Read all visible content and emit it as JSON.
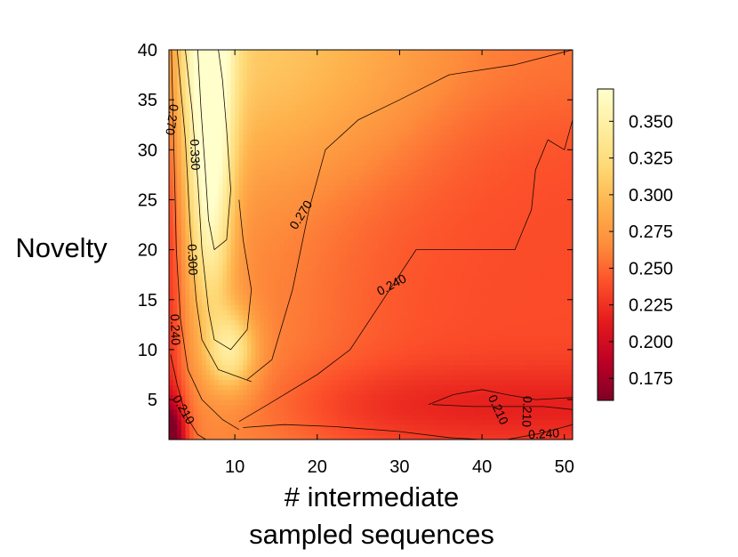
{
  "chart_data": {
    "type": "heatmap",
    "title": "",
    "xlabel_line1": "# intermediate",
    "xlabel_line2": "sampled sequences",
    "ylabel": "Novelty",
    "xlim": [
      2,
      51
    ],
    "ylim": [
      1,
      40
    ],
    "x_ticks": [
      10,
      20,
      30,
      40,
      50
    ],
    "y_ticks": [
      5,
      10,
      15,
      20,
      25,
      30,
      35,
      40
    ],
    "colorbar": {
      "range": [
        0.16,
        0.372
      ],
      "ticks": [
        "0.175",
        "0.200",
        "0.225",
        "0.250",
        "0.275",
        "0.300",
        "0.325",
        "0.350"
      ],
      "colormap": [
        "#800026",
        "#bd0026",
        "#e31a1c",
        "#fc4e2a",
        "#fd8d3c",
        "#feb24c",
        "#fed976",
        "#ffeda0",
        "#ffffcc"
      ]
    },
    "contour_levels": [
      {
        "level": "0.210",
        "contour": [
          [
            2.2,
            9.5
          ],
          [
            3.0,
            6.5
          ],
          [
            4.0,
            3.5
          ],
          [
            5.5,
            1.5
          ],
          [
            6.5,
            1.0
          ]
        ]
      },
      {
        "level": "0.240",
        "contour": [
          [
            2.3,
            40
          ],
          [
            2.6,
            30
          ],
          [
            2.9,
            20
          ],
          [
            3.4,
            13
          ],
          [
            4.3,
            8
          ],
          [
            6.0,
            5
          ],
          [
            8.5,
            3
          ],
          [
            10.5,
            2
          ]
        ]
      },
      {
        "level": "0.270",
        "contour": [
          [
            3.0,
            40
          ],
          [
            4.0,
            31
          ],
          [
            4.6,
            22
          ],
          [
            5.3,
            15
          ],
          [
            6.0,
            11
          ],
          [
            8.0,
            8
          ],
          [
            12.0,
            6.8
          ]
        ]
      },
      {
        "level": "0.300",
        "contour": [
          [
            4.0,
            40
          ],
          [
            4.8,
            34
          ],
          [
            5.5,
            27
          ],
          [
            6.0,
            20
          ],
          [
            6.8,
            14
          ],
          [
            7.5,
            11
          ],
          [
            9.5,
            10
          ],
          [
            11.5,
            12
          ],
          [
            12.0,
            16
          ],
          [
            11.0,
            21
          ],
          [
            10.5,
            25
          ]
        ]
      },
      {
        "level": "0.330",
        "contour": [
          [
            5.5,
            40
          ],
          [
            5.9,
            34
          ],
          [
            6.4,
            28
          ],
          [
            6.8,
            23
          ],
          [
            7.5,
            20
          ],
          [
            9.0,
            21
          ],
          [
            9.5,
            26
          ],
          [
            9.0,
            32
          ],
          [
            8.5,
            37
          ],
          [
            8.0,
            40
          ]
        ]
      },
      {
        "level": "0.270",
        "contour": [
          [
            11.5,
            7
          ],
          [
            14.5,
            9
          ],
          [
            17.0,
            16
          ],
          [
            19.0,
            24
          ],
          [
            21.0,
            30
          ],
          [
            25.0,
            33
          ],
          [
            30.0,
            35
          ],
          [
            36.0,
            37.5
          ],
          [
            44.0,
            38.5
          ],
          [
            51.0,
            40
          ]
        ]
      },
      {
        "level": "0.240",
        "contour": [
          [
            10.5,
            2.8
          ],
          [
            14.0,
            4.5
          ],
          [
            20.0,
            7.5
          ],
          [
            24.0,
            10
          ],
          [
            28.0,
            15
          ],
          [
            32.0,
            20
          ],
          [
            38.0,
            20
          ],
          [
            44.0,
            20
          ],
          [
            46.0,
            24
          ],
          [
            46.5,
            28
          ],
          [
            48.0,
            31
          ],
          [
            50.0,
            30
          ],
          [
            51.0,
            33
          ]
        ]
      },
      {
        "level": "0.240",
        "contour": [
          [
            11.0,
            2.2
          ],
          [
            16.0,
            2.5
          ],
          [
            22.0,
            2.3
          ],
          [
            30.0,
            1.8
          ],
          [
            36.0,
            1.2
          ],
          [
            40.0,
            1.0
          ]
        ]
      },
      {
        "level": "0.210",
        "contour": [
          [
            33.5,
            4.5
          ],
          [
            36.5,
            5.5
          ],
          [
            40.0,
            6.0
          ],
          [
            43.0,
            5.5
          ],
          [
            46.5,
            5.0
          ],
          [
            51.0,
            5.2
          ]
        ]
      },
      {
        "level": "0.210",
        "contour": [
          [
            34.0,
            4.5
          ],
          [
            39.0,
            4.3
          ],
          [
            44.0,
            4.3
          ],
          [
            47.5,
            4.3
          ],
          [
            51.0,
            4.0
          ]
        ]
      },
      {
        "level": "0.240",
        "contour": [
          [
            43.0,
            1.0
          ],
          [
            47.0,
            1.6
          ],
          [
            51.0,
            2.5
          ]
        ]
      }
    ],
    "contour_labels": [
      {
        "text": "0.210",
        "x": 3.8,
        "y": 4.0,
        "angle": 60
      },
      {
        "text": "0.240",
        "x": 2.8,
        "y": 12.0,
        "angle": 88
      },
      {
        "text": "0.270",
        "x": 2.4,
        "y": 33.0,
        "angle": 98
      },
      {
        "text": "0.300",
        "x": 4.9,
        "y": 19.0,
        "angle": 88
      },
      {
        "text": "0.330",
        "x": 5.2,
        "y": 29.5,
        "angle": 88
      },
      {
        "text": "0.270",
        "x": 18.0,
        "y": 23.5,
        "angle": -58
      },
      {
        "text": "0.240",
        "x": 29.0,
        "y": 16.5,
        "angle": -28
      },
      {
        "text": "0.210",
        "x": 42.0,
        "y": 4.0,
        "angle": 65
      },
      {
        "text": "0.210",
        "x": 45.5,
        "y": 3.8,
        "angle": 92
      },
      {
        "text": "0.240",
        "x": 47.5,
        "y": 1.6,
        "angle": -3
      }
    ]
  }
}
